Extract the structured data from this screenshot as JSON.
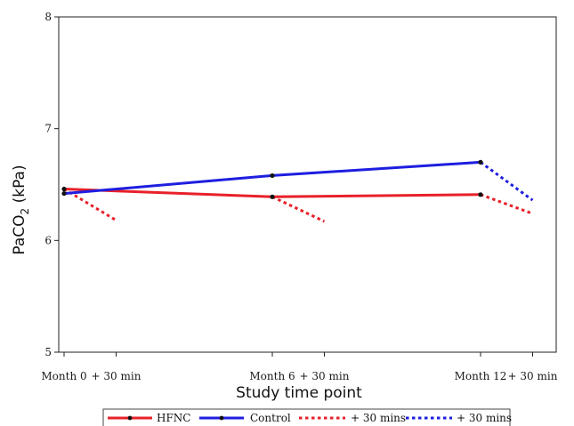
{
  "chart_data": {
    "type": "line",
    "title": "",
    "xlabel": "Study time point",
    "ylabel_main": "PaCO",
    "ylabel_sub": "2",
    "ylabel_unit": " (kPa)",
    "ylim": [
      5,
      8
    ],
    "yticks": [
      {
        "value": 5,
        "label": "5"
      },
      {
        "value": 6,
        "label": "6"
      },
      {
        "value": 7,
        "label": "7"
      },
      {
        "value": 8,
        "label": "8"
      }
    ],
    "xticks": [
      {
        "pos": 0,
        "label": "Month 0"
      },
      {
        "pos": 0.5,
        "label": "+ 30 min"
      },
      {
        "pos": 2,
        "label": "Month 6"
      },
      {
        "pos": 2.5,
        "label": "+ 30 min"
      },
      {
        "pos": 4,
        "label": "Month 12"
      },
      {
        "pos": 4.5,
        "label": "+ 30 min"
      }
    ],
    "series": [
      {
        "name": "HFNC",
        "color": "#e8202a",
        "style": "solid",
        "points": [
          [
            0,
            6.46
          ],
          [
            2,
            6.39
          ],
          [
            4,
            6.41
          ]
        ]
      },
      {
        "name": "Control",
        "color": "#1e1ee0",
        "style": "solid",
        "points": [
          [
            0,
            6.42
          ],
          [
            2,
            6.58
          ],
          [
            4,
            6.7
          ]
        ]
      },
      {
        "name": "+ 30 mins",
        "color": "#e8202a",
        "style": "dotted",
        "segments": [
          [
            [
              0,
              6.46
            ],
            [
              0.5,
              6.18
            ]
          ],
          [
            [
              2,
              6.39
            ],
            [
              2.5,
              6.17
            ]
          ],
          [
            [
              4,
              6.41
            ],
            [
              4.5,
              6.24
            ]
          ]
        ]
      },
      {
        "name": "+ 30 mins",
        "color": "#1e1ee0",
        "style": "dotted",
        "segments": [
          [
            [
              4,
              6.7
            ],
            [
              4.5,
              6.36
            ]
          ]
        ]
      }
    ],
    "legend_position": "bottom"
  }
}
